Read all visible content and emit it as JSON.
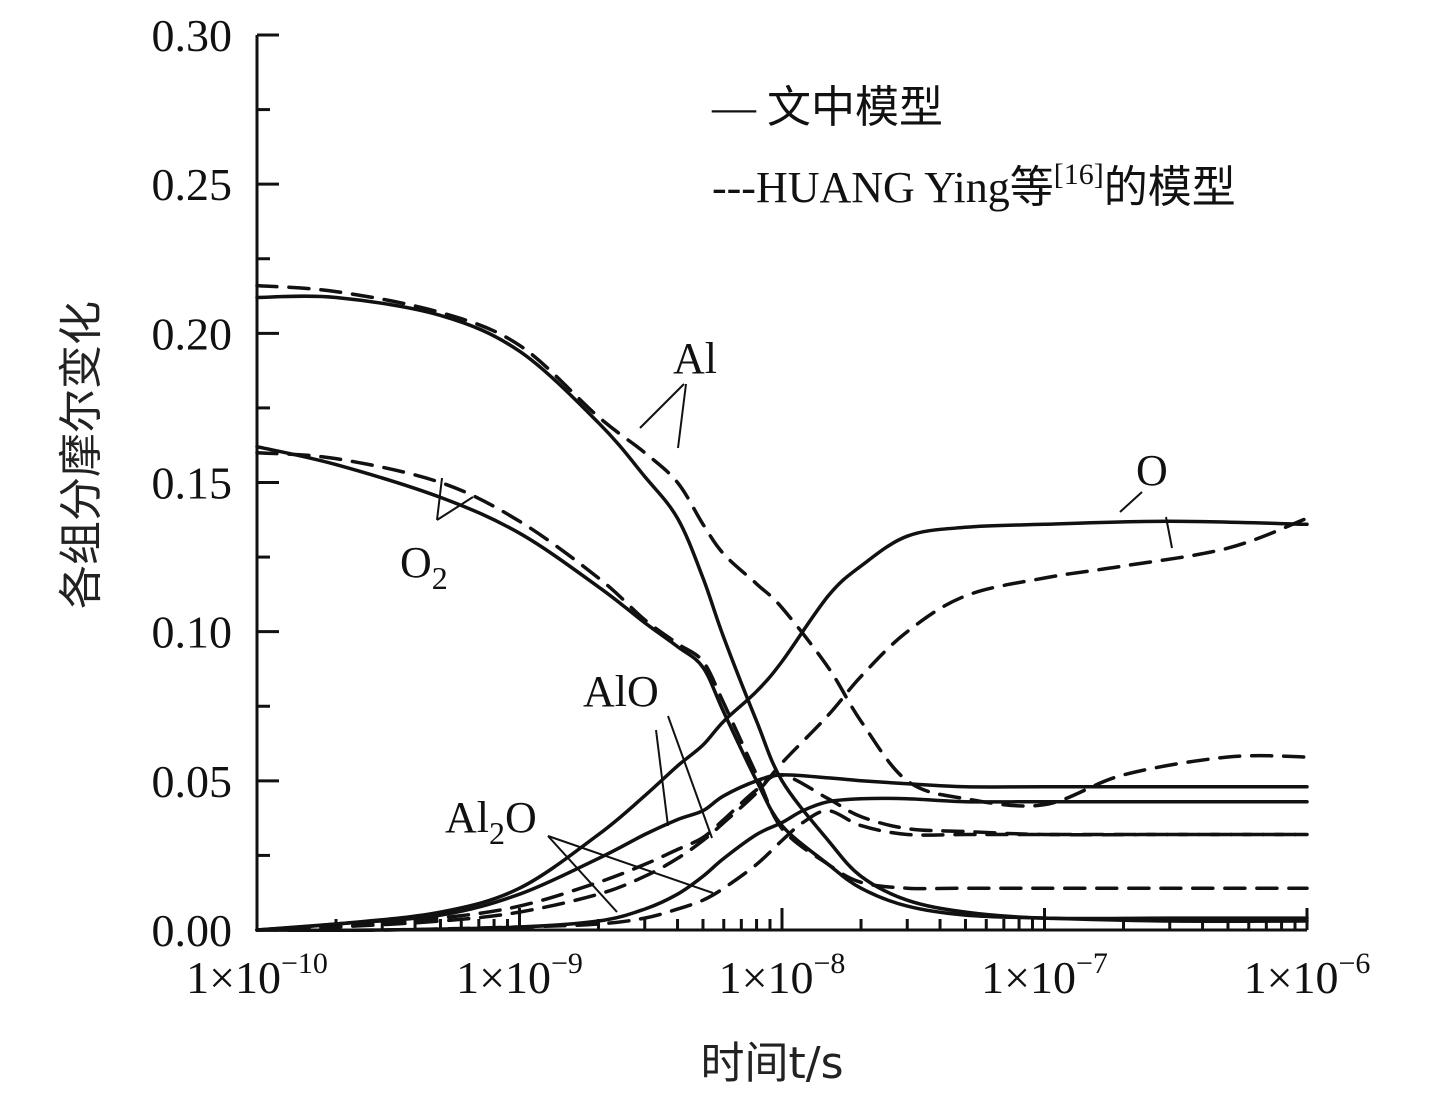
{
  "chart_data": {
    "type": "line",
    "x_scale": "log",
    "xlim": [
      1e-10,
      1e-06
    ],
    "ylim": [
      0,
      0.3
    ],
    "grid": false,
    "legend_position": "top-right",
    "xlabel": "时间t/s",
    "ylabel": "各组分摩尔变化",
    "x_ticks": [
      {
        "base": "1×10",
        "exp": "−10"
      },
      {
        "base": "1×10",
        "exp": "−9"
      },
      {
        "base": "1×10",
        "exp": "−8"
      },
      {
        "base": "1×10",
        "exp": "−7"
      },
      {
        "base": "1×10",
        "exp": "−6"
      }
    ],
    "y_ticks": [
      "0.00",
      "0.05",
      "0.10",
      "0.15",
      "0.20",
      "0.25",
      "0.30"
    ],
    "legend": [
      {
        "label": "— 文中模型",
        "style": "solid"
      },
      {
        "label": "---HUANG Ying等",
        "ref": "[16]",
        "suffix": "的模型",
        "style": "dashed"
      }
    ],
    "annotations": {
      "Al": {
        "text": "Al"
      },
      "O2": {
        "base": "O",
        "sub": "2"
      },
      "O": {
        "text": "O"
      },
      "AlO": {
        "text": "AlO"
      },
      "Al2O": {
        "base": "Al",
        "sub": "2",
        "rest": "O"
      }
    },
    "series": [
      {
        "species": "Al",
        "model": "文中模型",
        "style": "solid",
        "x": [
          1e-10,
          2e-10,
          5e-10,
          1e-09,
          2e-09,
          3e-09,
          4e-09,
          5e-09,
          6e-09,
          8e-09,
          1e-08,
          1.5e-08,
          2e-08,
          3e-08,
          5e-08,
          1e-07,
          3e-07,
          1e-06
        ],
        "y": [
          0.212,
          0.212,
          0.206,
          0.194,
          0.17,
          0.152,
          0.138,
          0.118,
          0.098,
          0.07,
          0.05,
          0.03,
          0.018,
          0.01,
          0.006,
          0.004,
          0.004,
          0.004
        ]
      },
      {
        "species": "Al",
        "model": "HUANG Ying",
        "style": "dashed",
        "x": [
          1e-10,
          2e-10,
          5e-10,
          1e-09,
          2e-09,
          3e-09,
          4e-09,
          5e-09,
          6e-09,
          8e-09,
          1e-08,
          1.5e-08,
          2e-08,
          3e-08,
          5e-08,
          1e-07,
          2e-07,
          5e-07,
          1e-06
        ],
        "y": [
          0.216,
          0.214,
          0.207,
          0.196,
          0.172,
          0.16,
          0.15,
          0.136,
          0.126,
          0.116,
          0.108,
          0.088,
          0.07,
          0.05,
          0.044,
          0.042,
          0.052,
          0.058,
          0.058
        ]
      },
      {
        "species": "O2",
        "model": "文中模型",
        "style": "solid",
        "x": [
          1e-10,
          2e-10,
          5e-10,
          1e-09,
          2e-09,
          3e-09,
          4e-09,
          5e-09,
          6e-09,
          8e-09,
          1e-08,
          1.5e-08,
          2e-08,
          3e-08,
          5e-08,
          1e-07,
          3e-07,
          1e-06
        ],
        "y": [
          0.162,
          0.156,
          0.145,
          0.133,
          0.115,
          0.103,
          0.095,
          0.088,
          0.073,
          0.05,
          0.035,
          0.022,
          0.014,
          0.008,
          0.005,
          0.004,
          0.003,
          0.003
        ]
      },
      {
        "species": "O2",
        "model": "HUANG Ying",
        "style": "dashed",
        "x": [
          1e-10,
          2e-10,
          5e-10,
          1e-09,
          2e-09,
          3e-09,
          4e-09,
          5e-09,
          6e-09,
          8e-09,
          1e-08,
          1.5e-08,
          2e-08,
          3e-08,
          5e-08,
          1e-07,
          3e-07,
          1e-06
        ],
        "y": [
          0.16,
          0.158,
          0.15,
          0.137,
          0.118,
          0.104,
          0.096,
          0.09,
          0.076,
          0.052,
          0.034,
          0.022,
          0.016,
          0.014,
          0.014,
          0.014,
          0.014,
          0.014
        ]
      },
      {
        "species": "O",
        "model": "文中模型",
        "style": "solid",
        "x": [
          1e-10,
          2e-10,
          5e-10,
          1e-09,
          2e-09,
          3e-09,
          4e-09,
          5e-09,
          6e-09,
          8e-09,
          1e-08,
          1.5e-08,
          2e-08,
          3e-08,
          5e-08,
          1e-07,
          3e-07,
          1e-06
        ],
        "y": [
          0.0,
          0.002,
          0.006,
          0.014,
          0.032,
          0.045,
          0.055,
          0.062,
          0.07,
          0.08,
          0.09,
          0.112,
          0.122,
          0.132,
          0.135,
          0.136,
          0.137,
          0.136
        ]
      },
      {
        "species": "O",
        "model": "HUANG Ying",
        "style": "dashed",
        "x": [
          1e-10,
          2e-10,
          5e-10,
          1e-09,
          2e-09,
          3e-09,
          4e-09,
          5e-09,
          6e-09,
          8e-09,
          1e-08,
          1.5e-08,
          2e-08,
          3e-08,
          5e-08,
          1e-07,
          2e-07,
          5e-07,
          1e-06
        ],
        "y": [
          0.0,
          0.001,
          0.003,
          0.006,
          0.012,
          0.018,
          0.024,
          0.03,
          0.036,
          0.046,
          0.056,
          0.072,
          0.085,
          0.1,
          0.112,
          0.118,
          0.122,
          0.128,
          0.138
        ]
      },
      {
        "species": "AlO",
        "model": "文中模型",
        "style": "solid",
        "x": [
          1e-10,
          2e-10,
          5e-10,
          1e-09,
          2e-09,
          3e-09,
          4e-09,
          5e-09,
          6e-09,
          8e-09,
          1e-08,
          1.5e-08,
          2e-08,
          3e-08,
          5e-08,
          1e-07,
          3e-07,
          1e-06
        ],
        "y": [
          0.0,
          0.002,
          0.005,
          0.012,
          0.024,
          0.032,
          0.037,
          0.04,
          0.045,
          0.05,
          0.052,
          0.051,
          0.05,
          0.049,
          0.048,
          0.048,
          0.048,
          0.048
        ]
      },
      {
        "species": "AlO",
        "model": "HUANG Ying",
        "style": "dashed",
        "x": [
          1e-10,
          2e-10,
          5e-10,
          1e-09,
          2e-09,
          3e-09,
          4e-09,
          5e-09,
          6e-09,
          8e-09,
          1e-08,
          1.5e-08,
          2e-08,
          3e-08,
          5e-08,
          1e-07,
          3e-07,
          1e-06
        ],
        "y": [
          0.0,
          0.001,
          0.004,
          0.008,
          0.016,
          0.022,
          0.027,
          0.031,
          0.037,
          0.047,
          0.052,
          0.044,
          0.038,
          0.034,
          0.033,
          0.032,
          0.032,
          0.032
        ]
      },
      {
        "species": "Al2O",
        "model": "文中模型",
        "style": "solid",
        "x": [
          1e-10,
          3e-10,
          1e-09,
          2e-09,
          3e-09,
          4e-09,
          5e-09,
          6e-09,
          8e-09,
          1e-08,
          1.2e-08,
          1.5e-08,
          2e-08,
          3e-08,
          5e-08,
          1e-07,
          3e-07,
          1e-06
        ],
        "y": [
          0.0,
          0.0,
          0.001,
          0.003,
          0.007,
          0.012,
          0.018,
          0.024,
          0.032,
          0.036,
          0.04,
          0.043,
          0.044,
          0.044,
          0.043,
          0.043,
          0.043,
          0.043
        ]
      },
      {
        "species": "Al2O",
        "model": "HUANG Ying",
        "style": "dashed",
        "x": [
          1e-10,
          3e-10,
          1e-09,
          2e-09,
          3e-09,
          4e-09,
          5e-09,
          6e-09,
          8e-09,
          1e-08,
          1.2e-08,
          1.5e-08,
          2e-08,
          3e-08,
          5e-08,
          1e-07,
          3e-07,
          1e-06
        ],
        "y": [
          0.0,
          0.0,
          0.001,
          0.002,
          0.004,
          0.007,
          0.01,
          0.014,
          0.022,
          0.03,
          0.036,
          0.04,
          0.035,
          0.032,
          0.032,
          0.032,
          0.032,
          0.032
        ]
      }
    ]
  }
}
